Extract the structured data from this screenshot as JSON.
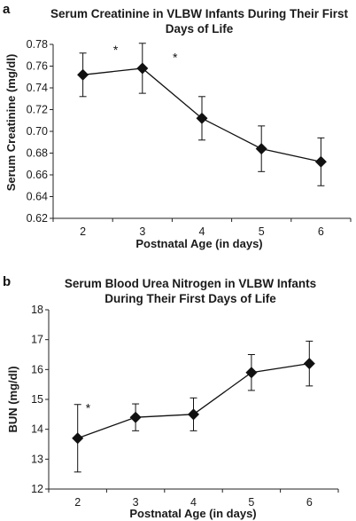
{
  "chart_data": [
    {
      "panel": "a",
      "type": "line",
      "title": "Serum Creatinine in VLBW Infants During Their First Days of Life",
      "title_lines": [
        "Serum Creatinine in VLBW Infants During Their First",
        "Days of Life"
      ],
      "xlabel": "Postnatal Age (in days)",
      "ylabel": "Serum Creatinine (mg/dl)",
      "categories": [
        "2",
        "3",
        "4",
        "5",
        "6"
      ],
      "x": [
        2,
        3,
        4,
        5,
        6
      ],
      "values": [
        0.752,
        0.758,
        0.712,
        0.684,
        0.672
      ],
      "error": [
        0.02,
        0.023,
        0.02,
        0.021,
        0.022
      ],
      "ylim": [
        0.62,
        0.78
      ],
      "yticks": [
        "0.62",
        "0.64",
        "0.66",
        "0.68",
        "0.70",
        "0.72",
        "0.74",
        "0.76",
        "0.78"
      ],
      "ytick_values": [
        0.62,
        0.64,
        0.66,
        0.68,
        0.7,
        0.72,
        0.74,
        0.76,
        0.78
      ],
      "grid": false,
      "annotations": [
        {
          "text": "*",
          "x": 2.55,
          "y": 0.776
        },
        {
          "text": "*",
          "x": 3.55,
          "y": 0.769
        }
      ]
    },
    {
      "panel": "b",
      "type": "line",
      "title": "Serum Blood Urea Nitrogen in VLBW Infants During Their First Days of Life",
      "title_lines": [
        "Serum Blood Urea Nitrogen in VLBW Infants",
        "During Their First Days of Life"
      ],
      "xlabel": "Postnatal Age (in days)",
      "ylabel": "BUN (mg/dl)",
      "categories": [
        "2",
        "3",
        "4",
        "5",
        "6"
      ],
      "x": [
        2,
        3,
        4,
        5,
        6
      ],
      "values": [
        13.7,
        14.4,
        14.5,
        15.9,
        16.2
      ],
      "error": [
        1.13,
        0.45,
        0.55,
        0.6,
        0.75
      ],
      "ylim": [
        12,
        18
      ],
      "yticks": [
        "12",
        "13",
        "14",
        "15",
        "16",
        "17",
        "18"
      ],
      "ytick_values": [
        12,
        13,
        14,
        15,
        16,
        17,
        18
      ],
      "grid": false,
      "annotations": [
        {
          "text": "*",
          "x": 2.18,
          "y": 14.75
        }
      ]
    }
  ]
}
